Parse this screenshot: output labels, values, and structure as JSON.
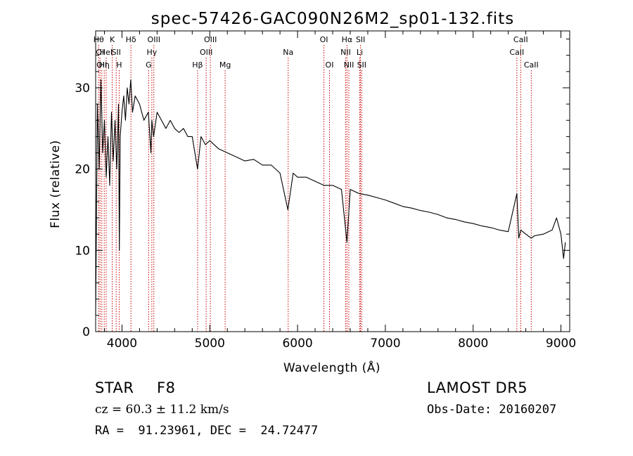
{
  "chart_data": {
    "type": "line",
    "title": "spec-57426-GAC090N26M2_sp01-132.fits",
    "xlabel": "Wavelength (Å)",
    "ylabel": "Flux (relative)",
    "xlim": [
      3700,
      9100
    ],
    "ylim": [
      0,
      37
    ],
    "xticks": [
      4000,
      5000,
      6000,
      7000,
      8000,
      9000
    ],
    "xtick_labels": [
      "4000",
      "5000",
      "6000",
      "7000",
      "8000",
      "9000"
    ],
    "yticks": [
      0,
      10,
      20,
      30
    ],
    "ytick_labels": [
      "0",
      "10",
      "20",
      "30"
    ],
    "grid": false,
    "line_color": "#000000",
    "marker_color": "#cc0000",
    "series": [
      {
        "x": [
          3700,
          3720,
          3740,
          3760,
          3780,
          3800,
          3820,
          3840,
          3860,
          3880,
          3900,
          3920,
          3940,
          3960,
          3970,
          3980,
          4000,
          4020,
          4040,
          4060,
          4080,
          4100,
          4120,
          4150,
          4200,
          4250,
          4300,
          4330,
          4340,
          4360,
          4400,
          4450,
          4500,
          4550,
          4600,
          4650,
          4700,
          4750,
          4800,
          4861,
          4900,
          4950,
          5000,
          5100,
          5200,
          5300,
          5400,
          5500,
          5600,
          5700,
          5800,
          5890,
          5950,
          6000,
          6100,
          6200,
          6300,
          6400,
          6500,
          6563,
          6600,
          6700,
          6800,
          6900,
          7000,
          7100,
          7200,
          7300,
          7400,
          7500,
          7600,
          7700,
          7800,
          7900,
          8000,
          8100,
          8200,
          8300,
          8400,
          8498,
          8520,
          8542,
          8600,
          8662,
          8700,
          8800,
          8900,
          8950,
          9000,
          9030,
          9050
        ],
        "y": [
          2,
          28,
          20,
          31,
          22,
          26,
          19,
          24,
          18,
          27,
          21,
          26,
          20,
          28,
          10,
          24,
          27,
          29,
          26,
          30,
          28,
          31,
          27,
          29,
          28,
          26,
          27,
          22,
          26,
          24,
          27,
          26,
          25,
          26,
          25,
          24.5,
          25,
          24,
          24,
          20,
          24,
          23,
          23.5,
          22.5,
          22,
          21.5,
          21,
          21.2,
          20.5,
          20.5,
          19.5,
          15,
          19.5,
          19,
          19,
          18.5,
          18,
          18,
          17.5,
          11,
          17.5,
          17,
          16.8,
          16.5,
          16.2,
          15.8,
          15.4,
          15.2,
          14.9,
          14.7,
          14.4,
          14.0,
          13.8,
          13.5,
          13.3,
          13.0,
          12.8,
          12.5,
          12.3,
          17,
          11.5,
          12.5,
          12,
          11.5,
          11.8,
          12,
          12.5,
          14,
          12,
          9,
          11
        ]
      }
    ],
    "line_markers": [
      {
        "wl": 3734,
        "label": "Hθ",
        "row": 0
      },
      {
        "wl": 3750,
        "label": "OI",
        "row": 1
      },
      {
        "wl": 3770,
        "label": "OII",
        "row": 2
      },
      {
        "wl": 3798,
        "label": "Hη",
        "row": 2
      },
      {
        "wl": 3820,
        "label": "HeI",
        "row": 1
      },
      {
        "wl": 3889,
        "label": "K",
        "row": 0
      },
      {
        "wl": 3934,
        "label": "SII",
        "row": 1
      },
      {
        "wl": 3968,
        "label": "H",
        "row": 2
      },
      {
        "wl": 4102,
        "label": "Hδ",
        "row": 0
      },
      {
        "wl": 4304,
        "label": "G",
        "row": 2
      },
      {
        "wl": 4340,
        "label": "Hγ",
        "row": 1
      },
      {
        "wl": 4363,
        "label": "OIII",
        "row": 0
      },
      {
        "wl": 4861,
        "label": "Hβ",
        "row": 2
      },
      {
        "wl": 4959,
        "label": "OIII",
        "row": 1
      },
      {
        "wl": 5007,
        "label": "OIII",
        "row": 0
      },
      {
        "wl": 5175,
        "label": "Mg",
        "row": 2
      },
      {
        "wl": 5893,
        "label": "Na",
        "row": 1
      },
      {
        "wl": 6300,
        "label": "OI",
        "row": 0
      },
      {
        "wl": 6364,
        "label": "OI",
        "row": 2
      },
      {
        "wl": 6548,
        "label": "NII",
        "row": 1
      },
      {
        "wl": 6563,
        "label": "Hα",
        "row": 0
      },
      {
        "wl": 6584,
        "label": "NII",
        "row": 2
      },
      {
        "wl": 6708,
        "label": "Li",
        "row": 1
      },
      {
        "wl": 6717,
        "label": "SII",
        "row": 0
      },
      {
        "wl": 6731,
        "label": "SII",
        "row": 2
      },
      {
        "wl": 8498,
        "label": "CaII",
        "row": 1
      },
      {
        "wl": 8542,
        "label": "CaII",
        "row": 0
      },
      {
        "wl": 8662,
        "label": "CaII",
        "row": 2
      }
    ]
  },
  "info": {
    "object_type": "STAR",
    "subclass": "F8",
    "survey": "LAMOST DR5",
    "cz": "cz = 60.3 ± 11.2 km/s",
    "obs_date": "Obs-Date: 20160207",
    "coords": "RA =  91.23961, DEC =  24.72477"
  }
}
